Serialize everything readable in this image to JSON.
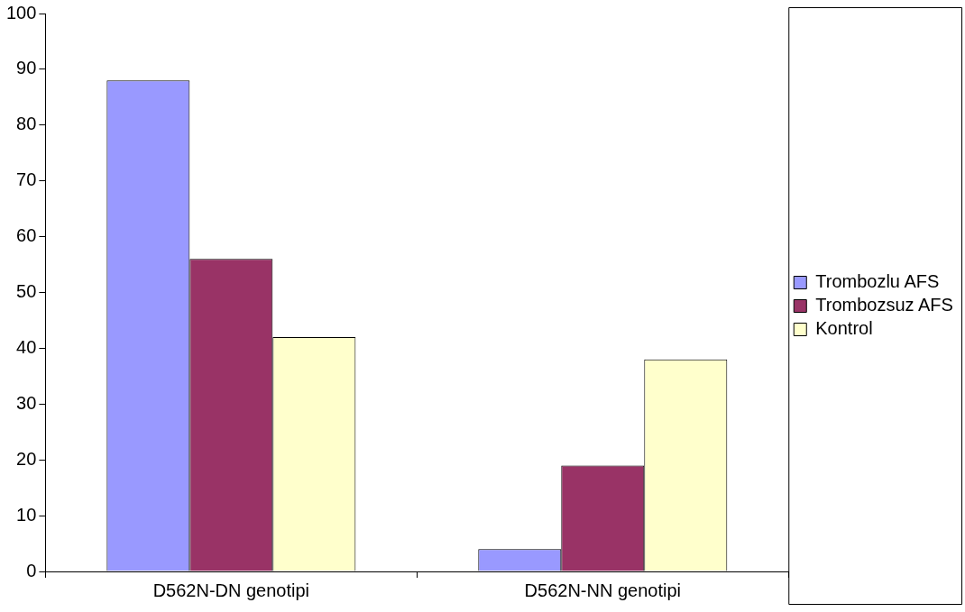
{
  "chart_data": {
    "type": "bar",
    "categories": [
      "D562N-DN genotipi",
      "D562N-NN genotipi"
    ],
    "series": [
      {
        "name": "Trombozlu AFS",
        "color": "#9999ff",
        "values": [
          88,
          4
        ]
      },
      {
        "name": "Trombozsuz AFS",
        "color": "#993366",
        "values": [
          56,
          19
        ]
      },
      {
        "name": "Kontrol",
        "color": "#ffffcc",
        "values": [
          42,
          38
        ]
      }
    ],
    "ylim": [
      0,
      100
    ],
    "yticks": [
      0,
      10,
      20,
      30,
      40,
      50,
      60,
      70,
      80,
      90,
      100
    ],
    "grid": false,
    "legend": "right"
  }
}
